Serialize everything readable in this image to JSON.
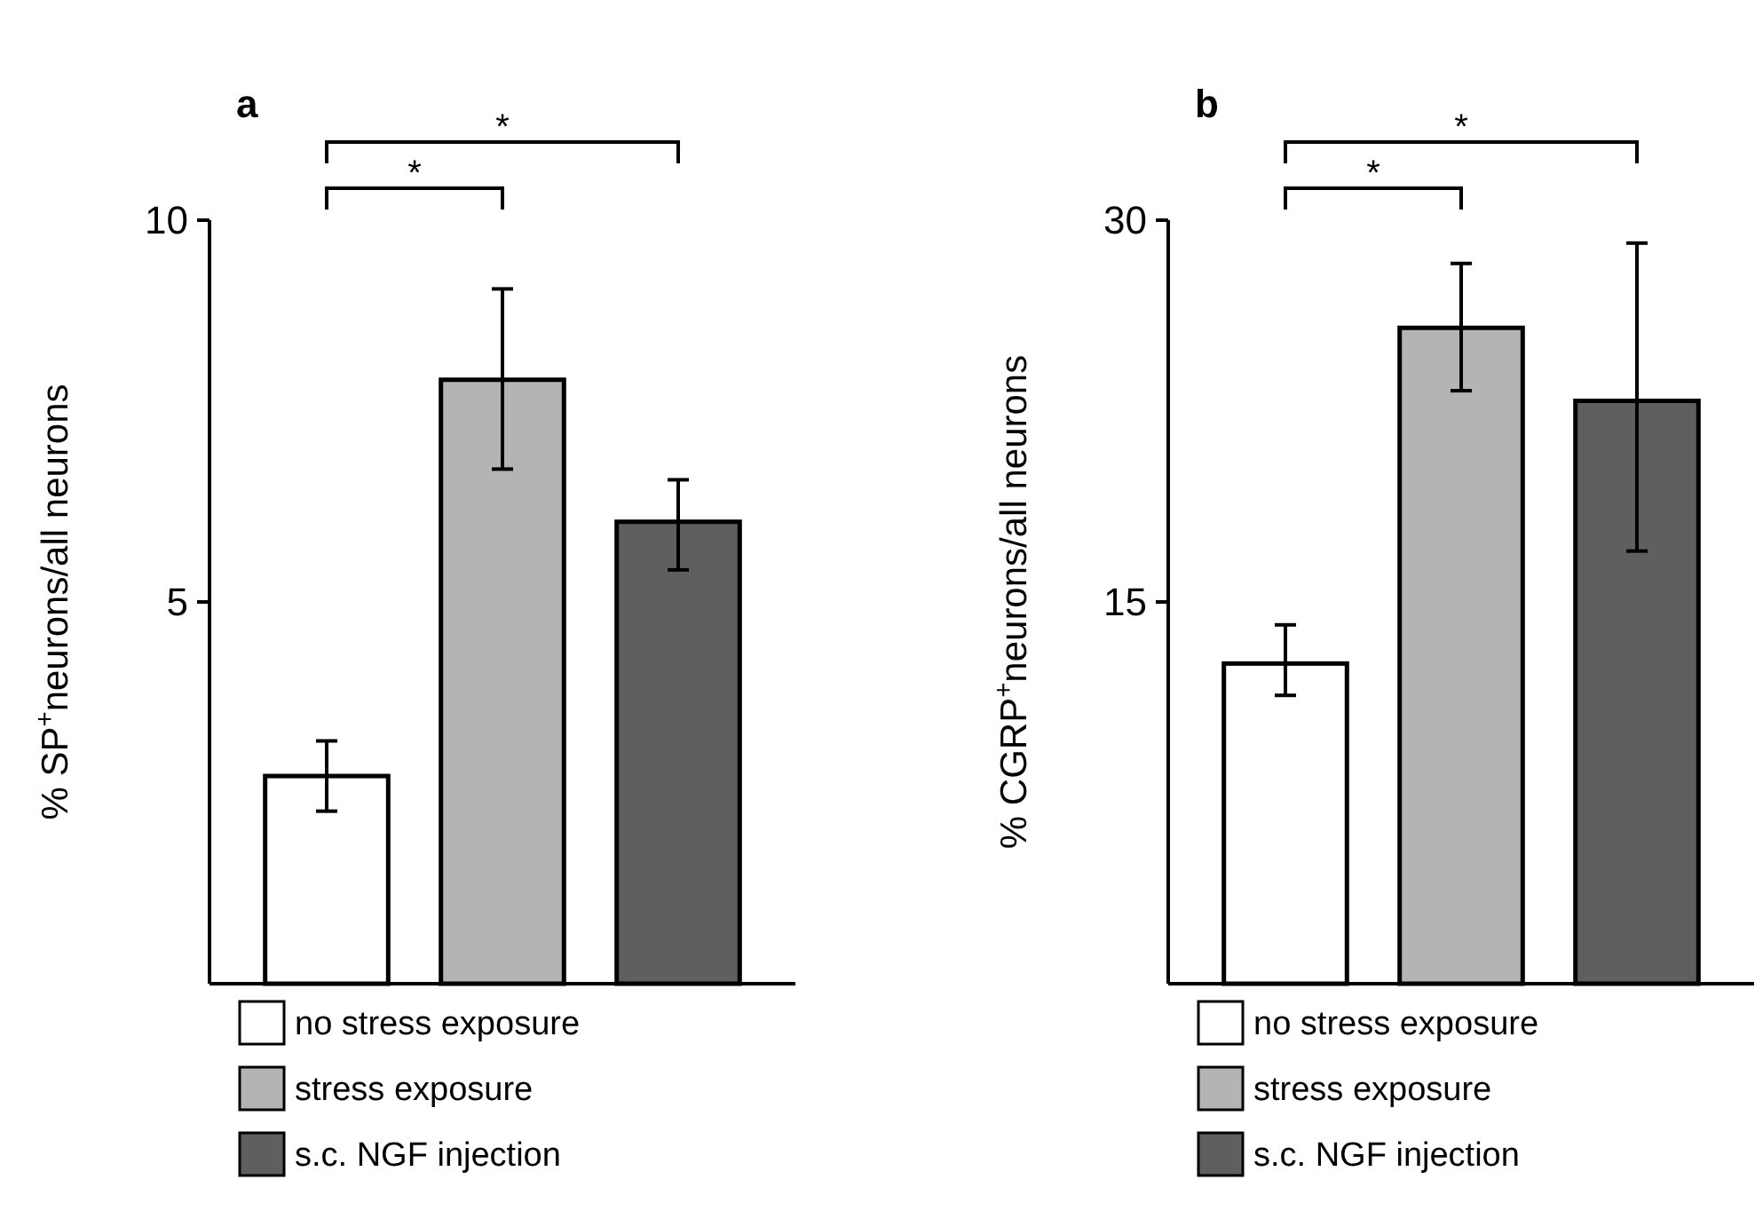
{
  "chart_data": [
    {
      "type": "bar",
      "title": "a",
      "ylabel": "% SP$^{+}$neurons/all neurons",
      "categories": [
        null
      ],
      "ylim": [
        0,
        10
      ],
      "yticks": [
        5,
        10
      ],
      "legend": "bottom",
      "annotations": [
        "*",
        "*"
      ],
      "series": [
        {
          "name": "no stress exposure",
          "color": "#ffffff",
          "values": [
            2.72
          ],
          "errors": [
            [
              2.26,
              3.18
            ]
          ]
        },
        {
          "name": "stress exposure",
          "color": "#b4b4b4",
          "values": [
            7.91
          ],
          "errors": [
            [
              6.74,
              9.1
            ]
          ]
        },
        {
          "name": "s.c. NGF injection",
          "color": "#5f5f5f",
          "values": [
            6.05
          ],
          "errors": [
            [
              5.42,
              6.6
            ]
          ]
        }
      ]
    },
    {
      "type": "bar",
      "title": "b",
      "ylabel": "% CGRP$^{+}$neurons/all neurons",
      "categories": [
        null
      ],
      "ylim": [
        0,
        30
      ],
      "yticks": [
        15,
        30
      ],
      "legend": "bottom",
      "annotations": [
        "*",
        "*"
      ],
      "series": [
        {
          "name": "no stress exposure",
          "color": "#ffffff",
          "values": [
            12.58
          ],
          "errors": [
            [
              11.33,
              14.1
            ]
          ]
        },
        {
          "name": "stress exposure",
          "color": "#b4b4b4",
          "values": [
            25.77
          ],
          "errors": [
            [
              23.3,
              28.3
            ]
          ]
        },
        {
          "name": "s.c. NGF injection",
          "color": "#5f5f5f",
          "values": [
            22.9
          ],
          "errors": [
            [
              17.0,
              29.1
            ]
          ]
        }
      ]
    }
  ]
}
